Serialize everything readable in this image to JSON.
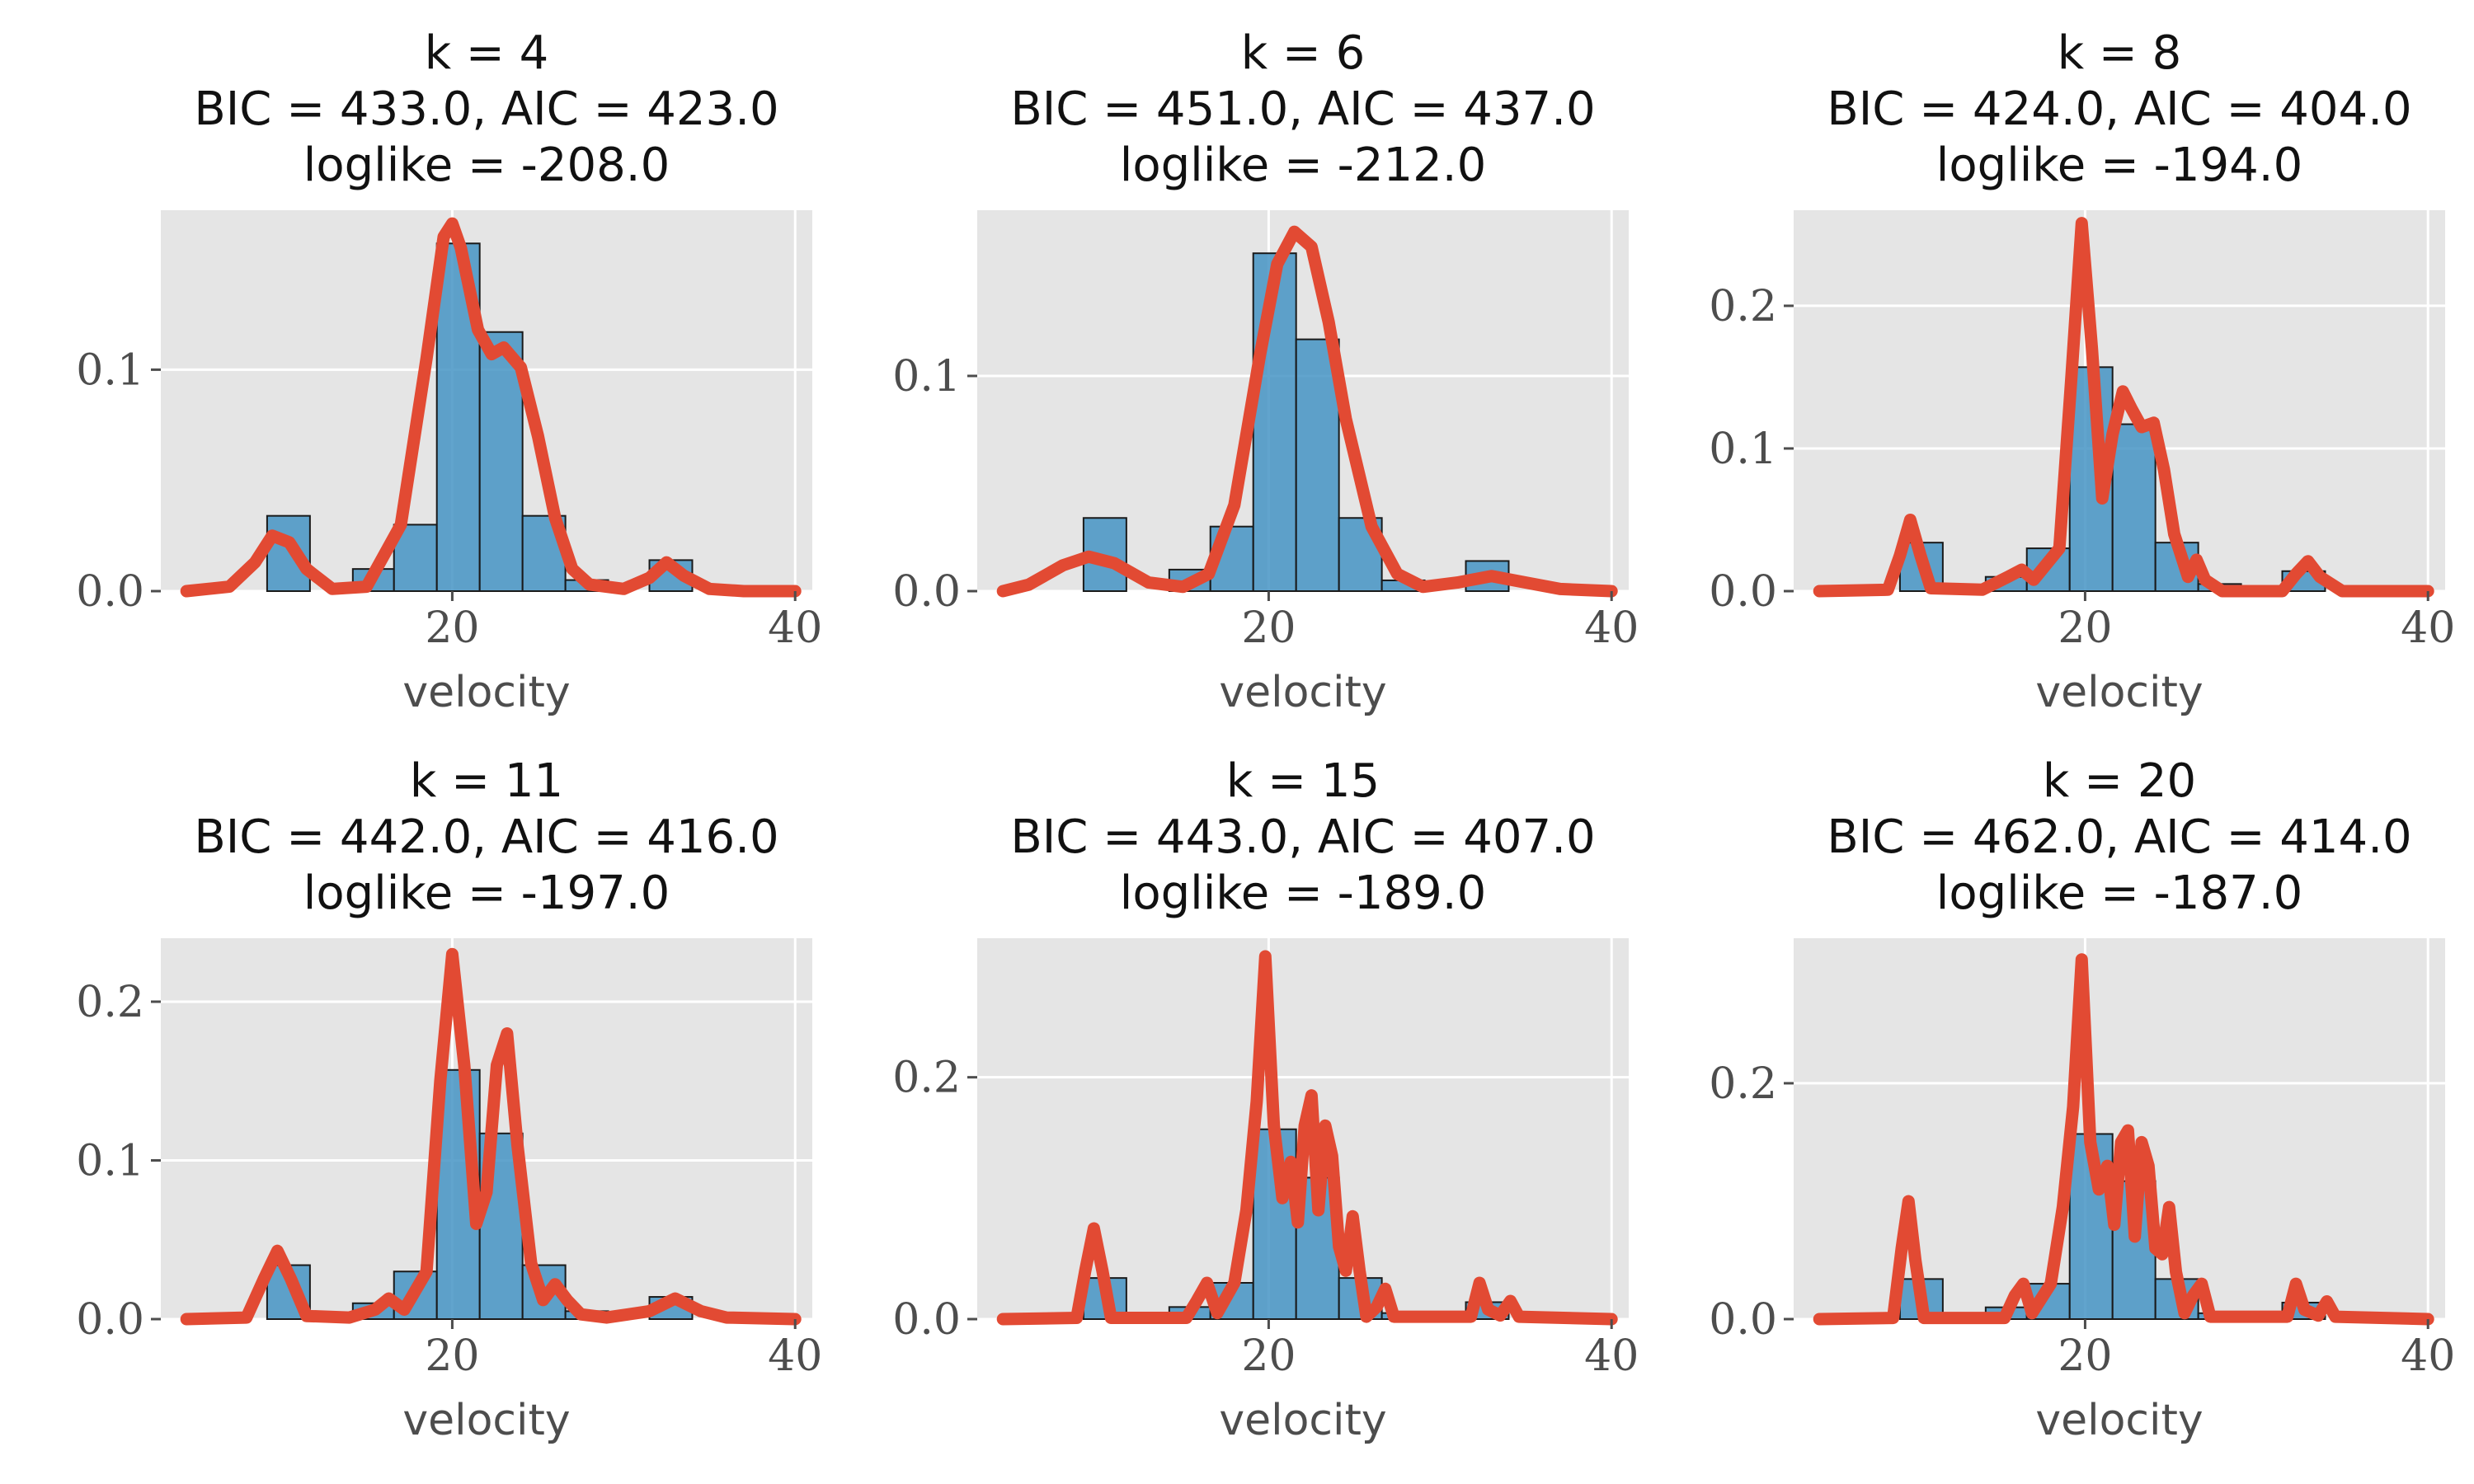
{
  "colors": {
    "bar": "#4594c4",
    "curve": "#e24a33",
    "panel_bg": "#e5e5e5",
    "grid": "#ffffff"
  },
  "chart_data": [
    {
      "type": "bar",
      "title_lines": [
        "k = 4",
        "BIC = 433.0, AIC = 423.0",
        "loglike = -208.0"
      ],
      "xlabel": "velocity",
      "xlim": [
        3,
        41
      ],
      "ylim": [
        0,
        0.172
      ],
      "xticks": [
        20,
        40
      ],
      "yticks": [
        0.0,
        0.1
      ],
      "hist_bin_edges": [
        9.2,
        11.7,
        14.2,
        16.6,
        19.1,
        21.6,
        24.1,
        26.6,
        29.1,
        31.5,
        34.0
      ],
      "hist_values": [
        0.034,
        0.0,
        0.01,
        0.03,
        0.157,
        0.117,
        0.034,
        0.005,
        0.0,
        0.014
      ],
      "density_curve": {
        "x": [
          4.5,
          7,
          8.5,
          9.5,
          10.5,
          11.5,
          13,
          15,
          17,
          18.5,
          19.5,
          20,
          20.5,
          21.5,
          22.3,
          23,
          24,
          25,
          26,
          27,
          28,
          30,
          31.5,
          32.5,
          33.5,
          35,
          37,
          40
        ],
        "y": [
          0,
          0.002,
          0.013,
          0.025,
          0.022,
          0.01,
          0.001,
          0.002,
          0.03,
          0.105,
          0.16,
          0.166,
          0.155,
          0.118,
          0.107,
          0.11,
          0.101,
          0.07,
          0.033,
          0.01,
          0.003,
          0.001,
          0.006,
          0.013,
          0.007,
          0.001,
          0,
          0
        ]
      }
    },
    {
      "type": "bar",
      "title_lines": [
        "k = 6",
        "BIC = 451.0, AIC = 437.0",
        "loglike = -212.0"
      ],
      "xlabel": "velocity",
      "xlim": [
        3,
        41
      ],
      "ylim": [
        0,
        0.177
      ],
      "xticks": [
        20,
        40
      ],
      "yticks": [
        0.0,
        0.1
      ],
      "hist_bin_edges": [
        9.2,
        11.7,
        14.2,
        16.6,
        19.1,
        21.6,
        24.1,
        26.6,
        29.1,
        31.5,
        34.0
      ],
      "hist_values": [
        0.034,
        0.0,
        0.01,
        0.03,
        0.157,
        0.117,
        0.034,
        0.005,
        0.0,
        0.014
      ],
      "density_curve": {
        "x": [
          4.5,
          6,
          8,
          9.5,
          11,
          13,
          15,
          16.5,
          18,
          19.5,
          20.5,
          21.5,
          22.5,
          23.5,
          24.5,
          26,
          27.5,
          29,
          31,
          33,
          35,
          37,
          40
        ],
        "y": [
          0,
          0.003,
          0.012,
          0.016,
          0.013,
          0.004,
          0.002,
          0.008,
          0.04,
          0.11,
          0.152,
          0.167,
          0.16,
          0.125,
          0.08,
          0.03,
          0.008,
          0.002,
          0.004,
          0.007,
          0.004,
          0.001,
          0
        ]
      }
    },
    {
      "type": "bar",
      "title_lines": [
        "k = 8",
        "BIC = 424.0, AIC = 404.0",
        "loglike = -194.0"
      ],
      "xlabel": "velocity",
      "xlim": [
        3,
        41
      ],
      "ylim": [
        0,
        0.267
      ],
      "xticks": [
        20,
        40
      ],
      "yticks": [
        0.0,
        0.1,
        0.2
      ],
      "hist_bin_edges": [
        9.2,
        11.7,
        14.2,
        16.6,
        19.1,
        21.6,
        24.1,
        26.6,
        29.1,
        31.5,
        34.0
      ],
      "hist_values": [
        0.034,
        0.0,
        0.01,
        0.03,
        0.157,
        0.117,
        0.034,
        0.005,
        0.0,
        0.014
      ],
      "density_curve": {
        "x": [
          4.5,
          8.5,
          9.2,
          9.8,
          10.4,
          11,
          14,
          15.5,
          16.3,
          17,
          18.5,
          19.2,
          19.8,
          20.4,
          21,
          21.6,
          22.2,
          22.7,
          23.3,
          24,
          24.6,
          25.2,
          26,
          26.5,
          27,
          28,
          31.5,
          32.3,
          33,
          33.7,
          35,
          40
        ],
        "y": [
          0,
          0.001,
          0.025,
          0.05,
          0.025,
          0.002,
          0.001,
          0.01,
          0.015,
          0.008,
          0.03,
          0.15,
          0.258,
          0.17,
          0.065,
          0.11,
          0.14,
          0.128,
          0.115,
          0.118,
          0.085,
          0.04,
          0.01,
          0.022,
          0.008,
          0,
          0,
          0.012,
          0.021,
          0.01,
          0,
          0
        ]
      }
    },
    {
      "type": "bar",
      "title_lines": [
        "k = 11",
        "BIC = 442.0, AIC = 416.0",
        "loglike = -197.0"
      ],
      "xlabel": "velocity",
      "xlim": [
        3,
        41
      ],
      "ylim": [
        0,
        0.24
      ],
      "xticks": [
        20,
        40
      ],
      "yticks": [
        0.0,
        0.1,
        0.2
      ],
      "hist_bin_edges": [
        9.2,
        11.7,
        14.2,
        16.6,
        19.1,
        21.6,
        24.1,
        26.6,
        29.1,
        31.5,
        34.0
      ],
      "hist_values": [
        0.034,
        0.0,
        0.01,
        0.03,
        0.157,
        0.117,
        0.034,
        0.005,
        0.0,
        0.014
      ],
      "density_curve": {
        "x": [
          4.5,
          8,
          9,
          9.8,
          10.6,
          11.5,
          14,
          15.5,
          16.3,
          17.2,
          18.5,
          19.3,
          20,
          20.7,
          21.4,
          22,
          22.6,
          23.2,
          23.8,
          24.6,
          25.3,
          26,
          26.7,
          27.5,
          29,
          31.5,
          33,
          34.5,
          36,
          40
        ],
        "y": [
          0,
          0.001,
          0.025,
          0.043,
          0.025,
          0.002,
          0.001,
          0.006,
          0.013,
          0.006,
          0.03,
          0.15,
          0.23,
          0.16,
          0.06,
          0.08,
          0.16,
          0.18,
          0.11,
          0.035,
          0.012,
          0.022,
          0.012,
          0.003,
          0.001,
          0.005,
          0.013,
          0.005,
          0.001,
          0
        ]
      }
    },
    {
      "type": "bar",
      "title_lines": [
        "k = 15",
        "BIC = 443.0, AIC = 407.0",
        "loglike = -189.0"
      ],
      "xlabel": "velocity",
      "xlim": [
        3,
        41
      ],
      "ylim": [
        0,
        0.315
      ],
      "xticks": [
        20,
        40
      ],
      "yticks": [
        0.0,
        0.2
      ],
      "hist_bin_edges": [
        9.2,
        11.7,
        14.2,
        16.6,
        19.1,
        21.6,
        24.1,
        26.6,
        29.1,
        31.5,
        34.0
      ],
      "hist_values": [
        0.034,
        0.0,
        0.01,
        0.03,
        0.157,
        0.117,
        0.034,
        0.005,
        0.0,
        0.014
      ],
      "density_curve": {
        "x": [
          4.5,
          8.8,
          9.3,
          9.8,
          10.3,
          10.8,
          15.2,
          15.8,
          16.4,
          17,
          18,
          18.7,
          19.3,
          19.8,
          20.3,
          20.8,
          21.3,
          21.7,
          22.1,
          22.5,
          22.9,
          23.3,
          23.7,
          24.1,
          24.5,
          24.9,
          25.3,
          25.7,
          26.3,
          26.8,
          27.3,
          31.8,
          32.3,
          32.8,
          33.5,
          34.1,
          34.6,
          40
        ],
        "y": [
          0,
          0.001,
          0.04,
          0.075,
          0.04,
          0.001,
          0.001,
          0.015,
          0.03,
          0.005,
          0.03,
          0.09,
          0.18,
          0.3,
          0.16,
          0.1,
          0.13,
          0.08,
          0.16,
          0.185,
          0.09,
          0.16,
          0.135,
          0.06,
          0.04,
          0.085,
          0.04,
          0.002,
          0.01,
          0.025,
          0.002,
          0.002,
          0.03,
          0.008,
          0.003,
          0.015,
          0.002,
          0
        ]
      }
    },
    {
      "type": "bar",
      "title_lines": [
        "k = 20",
        "BIC = 462.0, AIC = 414.0",
        "loglike = -187.0"
      ],
      "xlabel": "velocity",
      "xlim": [
        3,
        41
      ],
      "ylim": [
        0,
        0.323
      ],
      "xticks": [
        20,
        40
      ],
      "yticks": [
        0.0,
        0.2
      ],
      "hist_bin_edges": [
        9.2,
        11.7,
        14.2,
        16.6,
        19.1,
        21.6,
        24.1,
        26.6,
        29.1,
        31.5,
        34.0
      ],
      "hist_values": [
        0.034,
        0.0,
        0.01,
        0.03,
        0.157,
        0.117,
        0.034,
        0.005,
        0.0,
        0.014
      ],
      "density_curve": {
        "x": [
          4.5,
          8.8,
          9.3,
          9.7,
          10.1,
          10.6,
          15.3,
          15.9,
          16.4,
          16.9,
          18,
          18.7,
          19.3,
          19.8,
          20.3,
          20.8,
          21.3,
          21.7,
          22.1,
          22.5,
          22.9,
          23.3,
          23.7,
          24.1,
          24.5,
          24.9,
          25.3,
          25.8,
          26.3,
          26.8,
          27.3,
          31.8,
          32.3,
          32.8,
          33.6,
          34.1,
          34.6,
          40
        ],
        "y": [
          0,
          0.001,
          0.06,
          0.1,
          0.05,
          0.001,
          0.001,
          0.02,
          0.03,
          0.005,
          0.03,
          0.095,
          0.18,
          0.305,
          0.15,
          0.11,
          0.13,
          0.08,
          0.15,
          0.16,
          0.07,
          0.15,
          0.13,
          0.06,
          0.055,
          0.095,
          0.04,
          0.005,
          0.02,
          0.03,
          0.002,
          0.002,
          0.03,
          0.008,
          0.003,
          0.015,
          0.002,
          0
        ]
      }
    }
  ]
}
